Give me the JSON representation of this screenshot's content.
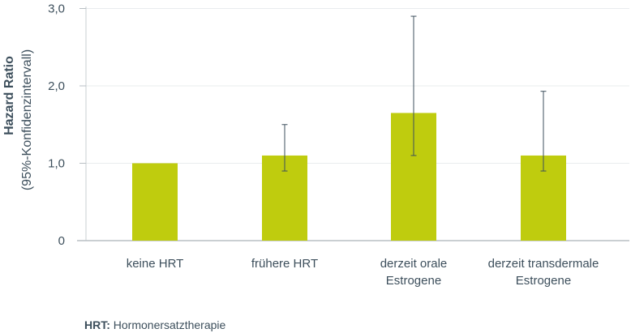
{
  "chart_data": {
    "type": "bar",
    "ylabel": "Hazard Ratio",
    "ylabel_sub": "(95%-Konfidenzintervall)",
    "ylim": [
      0,
      3
    ],
    "yticks": [
      {
        "value": 0,
        "label": "0"
      },
      {
        "value": 1,
        "label": "1,0"
      },
      {
        "value": 2,
        "label": "2,0"
      },
      {
        "value": 3,
        "label": "3,0"
      }
    ],
    "grid": true,
    "bar_color": "#bfcc0e",
    "error_color": "#3d4f5c",
    "categories": [
      [
        "keine HRT"
      ],
      [
        "frühere HRT"
      ],
      [
        "derzeit orale",
        "Estrogene"
      ],
      [
        "derzeit transdermale",
        "Estrogene"
      ]
    ],
    "values": [
      1.0,
      1.1,
      1.65,
      1.1
    ],
    "ci_lower": [
      null,
      0.9,
      1.1,
      0.9
    ],
    "ci_upper": [
      null,
      1.5,
      2.9,
      1.93
    ]
  },
  "footnote": {
    "abbr": "HRT:",
    "text": " Hormonersatztherapie"
  }
}
